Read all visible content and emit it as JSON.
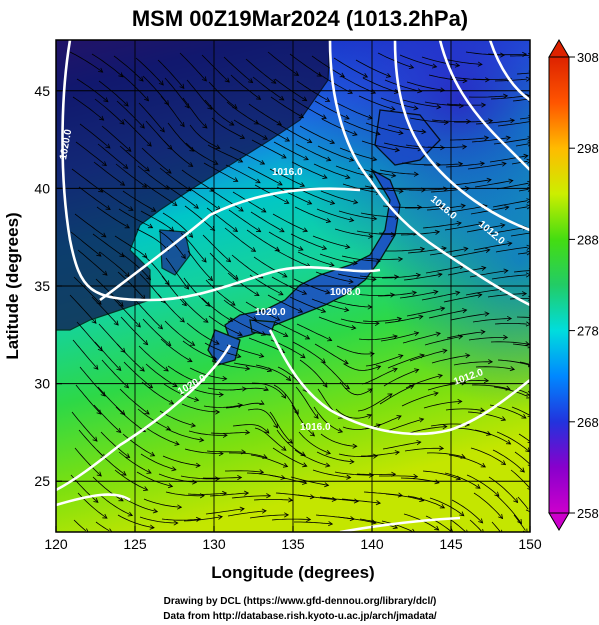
{
  "title": "MSM 00Z19Mar2024 (1013.2hPa)",
  "chart_data": {
    "type": "heatmap",
    "title": "MSM 00Z19Mar2024 (1013.2hPa)",
    "xlabel": "Longitude (degrees)",
    "ylabel": "Latitude  (degrees)",
    "xlim": [
      120,
      150
    ],
    "ylim": [
      22.4,
      47.6
    ],
    "x_ticks": [
      "120",
      "125",
      "130",
      "135",
      "140",
      "145",
      "150"
    ],
    "y_ticks": [
      "25",
      "30",
      "35",
      "40",
      "45"
    ],
    "grid": true,
    "colorbar": {
      "ticks": [
        "258",
        "268",
        "278",
        "288",
        "298",
        "308"
      ],
      "min": 258,
      "max": 308,
      "colors": [
        "#cc00cc",
        "#8800cc",
        "#2233dd",
        "#0088ff",
        "#00dddd",
        "#22cc66",
        "#44dd11",
        "#ccee00",
        "#ffbb00",
        "#ff5500",
        "#dd2200"
      ]
    },
    "contour_labels": [
      "1016.0",
      "1020.0",
      "1020.0",
      "1020.0",
      "1016.0",
      "1012.0",
      "1008.0",
      "1012.0",
      "1016.0"
    ]
  },
  "credits": {
    "line1": "Drawing by DCL (https://www.gfd-dennou.org/library/dcl/)",
    "line2": "Data from http://database.rish.kyoto-u.ac.jp/arch/jmadata/"
  }
}
